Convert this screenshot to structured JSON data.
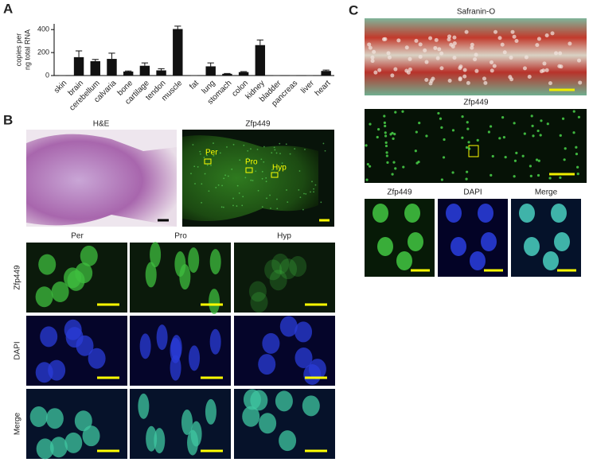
{
  "chart_data": {
    "type": "bar",
    "y_label": [
      "copies per",
      "ng total RNA"
    ],
    "categories": [
      "skin",
      "brain",
      "cerebellum",
      "calvaria",
      "bone",
      "cartilage",
      "tendon",
      "muscle",
      "fat",
      "lung",
      "stomach",
      "colon",
      "kidney",
      "bladder",
      "pancreas",
      "liver",
      "heart"
    ],
    "values": [
      0,
      160,
      125,
      145,
      35,
      85,
      45,
      405,
      0,
      80,
      15,
      30,
      265,
      0,
      0,
      0,
      40
    ],
    "errors": [
      0,
      55,
      15,
      50,
      5,
      25,
      15,
      25,
      0,
      30,
      3,
      5,
      45,
      0,
      0,
      0,
      8
    ],
    "color": "#111111",
    "ylim": [
      0,
      450
    ],
    "yticks": [
      0,
      200,
      400
    ]
  },
  "panels": {
    "a": "A",
    "b": "B",
    "c": "C"
  },
  "panel_b": {
    "top": [
      "H&E",
      "Zfp449"
    ],
    "regions": [
      "Per",
      "Pro",
      "Hyp"
    ],
    "columns": [
      "Per",
      "Pro",
      "Hyp"
    ],
    "rows": [
      "Zfp449",
      "DAPI",
      "Merge"
    ]
  },
  "panel_c": {
    "top": "Safranin-O",
    "middle": "Zfp449",
    "columns": [
      "Zfp449",
      "DAPI",
      "Merge"
    ]
  }
}
